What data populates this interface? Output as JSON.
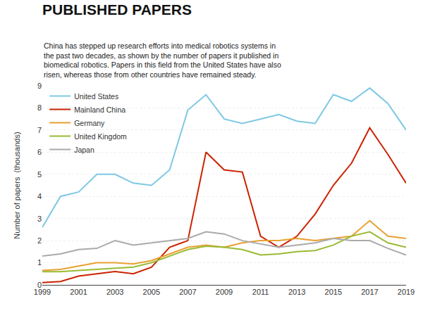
{
  "chart_data": {
    "type": "line",
    "title": "PUBLISHED PAPERS",
    "subtitle": "China has stepped up research efforts into medical robotics systems in\nthe past two decades, as shown by the number of papers it published in\nbiomedical robotics. Papers in this field from the United States have also\nrisen, whereas those from other countries have remained steady.",
    "ylabel": "Number of papers  (thousands)",
    "x": [
      1999,
      2000,
      2001,
      2002,
      2003,
      2004,
      2005,
      2006,
      2007,
      2008,
      2009,
      2010,
      2011,
      2012,
      2013,
      2014,
      2015,
      2016,
      2017,
      2018,
      2019
    ],
    "series": [
      {
        "name": "United States",
        "color": "#7EC8E3",
        "values": [
          2.6,
          4.0,
          4.2,
          5.0,
          5.0,
          4.6,
          4.5,
          5.2,
          7.9,
          8.6,
          7.5,
          7.3,
          7.5,
          7.7,
          7.4,
          7.3,
          8.6,
          8.3,
          8.9,
          8.2,
          7.0
        ]
      },
      {
        "name": "Mainland China",
        "color": "#CC2200",
        "values": [
          0.1,
          0.15,
          0.4,
          0.5,
          0.6,
          0.5,
          0.8,
          1.7,
          2.0,
          6.0,
          5.2,
          5.1,
          2.2,
          1.7,
          2.2,
          3.2,
          4.5,
          5.5,
          7.1,
          5.9,
          4.6
        ]
      },
      {
        "name": "Germany",
        "color": "#E8A030",
        "values": [
          0.65,
          0.7,
          0.85,
          1.0,
          1.0,
          0.95,
          1.1,
          1.4,
          1.7,
          1.8,
          1.7,
          1.9,
          2.0,
          2.0,
          2.1,
          2.0,
          2.1,
          2.2,
          2.9,
          2.2,
          2.1
        ]
      },
      {
        "name": "United Kingdom",
        "color": "#99BB33",
        "values": [
          0.6,
          0.6,
          0.65,
          0.7,
          0.75,
          0.8,
          1.0,
          1.3,
          1.6,
          1.75,
          1.7,
          1.6,
          1.35,
          1.4,
          1.5,
          1.55,
          1.8,
          2.2,
          2.4,
          1.9,
          1.7
        ]
      },
      {
        "name": "Japan",
        "color": "#AAAAAA",
        "values": [
          1.3,
          1.4,
          1.6,
          1.65,
          2.0,
          1.8,
          1.9,
          2.0,
          2.1,
          2.4,
          2.3,
          2.0,
          1.85,
          1.7,
          1.8,
          1.9,
          2.1,
          2.0,
          2.0,
          1.65,
          1.35
        ]
      }
    ],
    "xlim": [
      1999,
      2019
    ],
    "xticks": [
      1999,
      2001,
      2003,
      2005,
      2007,
      2009,
      2011,
      2013,
      2015,
      2017,
      2019
    ],
    "ylim": [
      0,
      9
    ],
    "yticks": [
      0,
      1,
      2,
      3,
      4,
      5,
      6,
      7,
      8,
      9
    ],
    "grid": "y",
    "legend": "upper left"
  }
}
